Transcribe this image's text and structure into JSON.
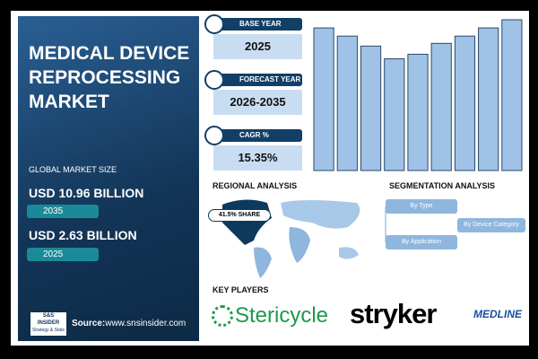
{
  "header": {
    "title_lines": [
      "MEDICAL DEVICE",
      "REPROCESSING",
      "MARKET"
    ]
  },
  "market_size": {
    "label": "GLOBAL MARKET SIZE",
    "items": [
      {
        "value": "USD 10.96 BILLION",
        "year": "2035"
      },
      {
        "value": "USD 2.63 BILLION",
        "year": "2025"
      }
    ]
  },
  "brand": {
    "logo_mark": "S&S",
    "logo_name": "INSIDER",
    "logo_tagline": "Strategy & Stats",
    "source_label": "Source:",
    "source_url": "www.snsinsider.com"
  },
  "stats": [
    {
      "label": "BASE YEAR",
      "value": "2025"
    },
    {
      "label": "FORECAST YEAR",
      "value": "2026-2035"
    },
    {
      "label": "CAGR %",
      "value": "15.35%"
    }
  ],
  "chart_data": {
    "type": "bar",
    "values": [
      157,
      148,
      137,
      123,
      128,
      140,
      148,
      157,
      166
    ],
    "color": "#9fc2e6"
  },
  "regional": {
    "title": "REGIONAL ANALYSIS",
    "callout": "41.5% SHARE"
  },
  "segmentation": {
    "title": "SEGMENTATION ANALYSIS",
    "items": [
      "By Type",
      "By Device Category",
      "By Application"
    ]
  },
  "key_players": {
    "title": "KEY PLAYERS",
    "companies": [
      "Stericycle",
      "stryker",
      "MEDLINE"
    ]
  }
}
